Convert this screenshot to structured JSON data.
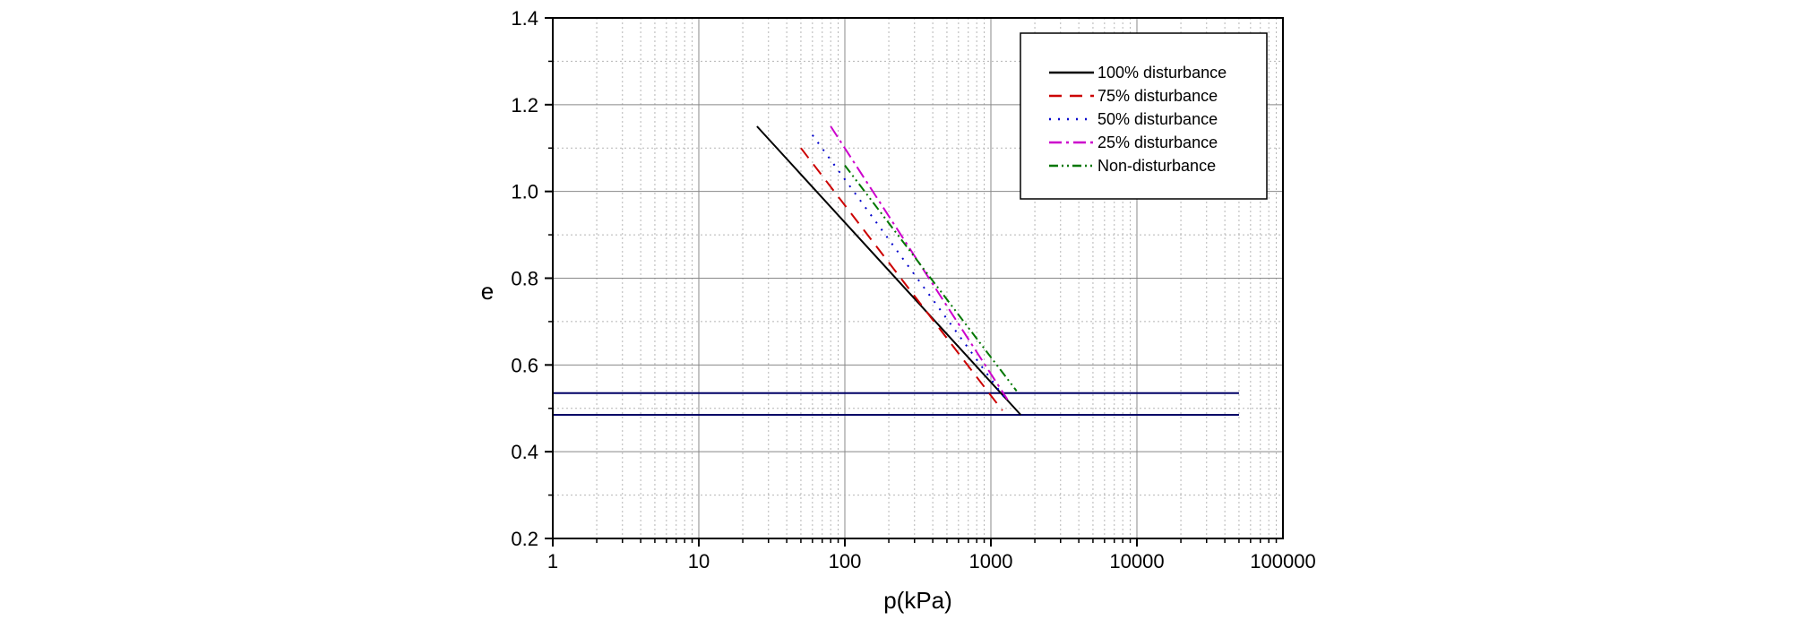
{
  "chart_data": {
    "type": "line",
    "xlabel": "p(kPa)",
    "ylabel": "e",
    "xscale": "log",
    "xlim": [
      1,
      100000
    ],
    "ylim": [
      0.2,
      1.4
    ],
    "x_ticks": [
      "1",
      "10",
      "100",
      "1000",
      "10000",
      "100000"
    ],
    "y_ticks": [
      "0.2",
      "0.4",
      "0.6",
      "0.8",
      "1.0",
      "1.2",
      "1.4"
    ],
    "grid": true,
    "legend_position": "top-right",
    "series": [
      {
        "name": "100% disturbance",
        "color": "#000000",
        "dash": "solid",
        "x": [
          25,
          1600
        ],
        "y": [
          1.15,
          0.485
        ]
      },
      {
        "name": "75% disturbance",
        "color": "#cc0000",
        "dash": "dashed",
        "x": [
          50,
          1200
        ],
        "y": [
          1.1,
          0.495
        ]
      },
      {
        "name": "50% disturbance",
        "color": "#0000cc",
        "dash": "dotted",
        "x": [
          60,
          1300
        ],
        "y": [
          1.13,
          0.515
        ]
      },
      {
        "name": "25% disturbance",
        "color": "#cc00cc",
        "dash": "dash-dot",
        "x": [
          80,
          1300
        ],
        "y": [
          1.15,
          0.52
        ]
      },
      {
        "name": "Non-disturbance",
        "color": "#007700",
        "dash": "dash-dot-dot",
        "x": [
          100,
          1500
        ],
        "y": [
          1.06,
          0.54
        ]
      }
    ],
    "reference_lines": [
      {
        "y": 0.535,
        "x": [
          1,
          50000
        ],
        "color": "#000066"
      },
      {
        "y": 0.485,
        "x": [
          1,
          50000
        ],
        "color": "#000066"
      }
    ]
  }
}
